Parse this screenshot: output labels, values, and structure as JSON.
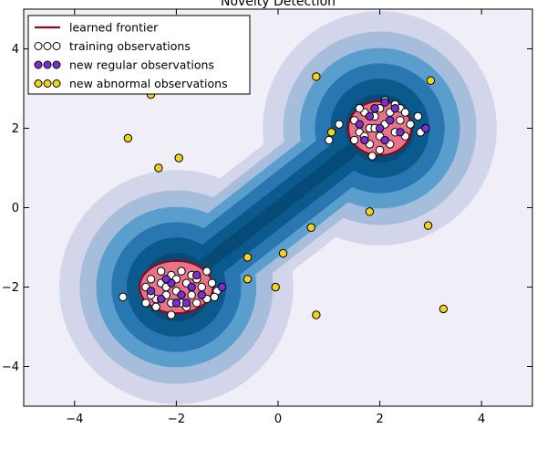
{
  "chart_data": {
    "type": "scatter",
    "title": "Novelty Detection",
    "xlabel": "",
    "ylabel": "",
    "xlim": [
      -5,
      5
    ],
    "ylim": [
      -5,
      5
    ],
    "x_ticks": [
      -4,
      -2,
      0,
      2,
      4
    ],
    "y_ticks": [
      -4,
      -2,
      0,
      2,
      4
    ],
    "grid": false,
    "legend_position": "top-left",
    "colors": {
      "frontier": "#8b0a1a",
      "frontier_fill": "#e8748c",
      "training": "#ffffff",
      "regular": "#7b2fd0",
      "abnormal": "#f2d21b",
      "contour_levels": [
        "#f0eef6",
        "#d3d6ea",
        "#a6bddb",
        "#5a9ecd",
        "#2a76b1",
        "#0b5a8e",
        "#064a78"
      ]
    },
    "legend": [
      {
        "label": "learned frontier",
        "kind": "line",
        "color": "#8b0a1a"
      },
      {
        "label": "training observations",
        "kind": "markers",
        "color": "#ffffff"
      },
      {
        "label": "new regular observations",
        "kind": "markers",
        "color": "#7b2fd0"
      },
      {
        "label": "new abnormal observations",
        "kind": "markers",
        "color": "#f2d21b"
      }
    ],
    "series": [
      {
        "name": "training observations",
        "points": [
          [
            -2.6,
            -2.0
          ],
          [
            -2.5,
            -1.8
          ],
          [
            -2.4,
            -2.3
          ],
          [
            -2.3,
            -1.9
          ],
          [
            -2.2,
            -2.2
          ],
          [
            -2.1,
            -1.7
          ],
          [
            -2.0,
            -2.1
          ],
          [
            -1.9,
            -2.4
          ],
          [
            -1.8,
            -1.9
          ],
          [
            -1.7,
            -2.2
          ],
          [
            -1.6,
            -1.8
          ],
          [
            -1.5,
            -2.0
          ],
          [
            -1.4,
            -2.3
          ],
          [
            -1.3,
            -1.9
          ],
          [
            -1.2,
            -2.1
          ],
          [
            -2.4,
            -2.5
          ],
          [
            -2.1,
            -2.4
          ],
          [
            -1.8,
            -2.5
          ],
          [
            -2.5,
            -2.2
          ],
          [
            -2.3,
            -1.6
          ],
          [
            -1.9,
            -1.6
          ],
          [
            -1.6,
            -2.4
          ],
          [
            -2.0,
            -1.8
          ],
          [
            -2.2,
            -2.0
          ],
          [
            -1.7,
            -1.7
          ],
          [
            -1.4,
            -1.6
          ],
          [
            -2.6,
            -2.4
          ],
          [
            -2.1,
            -2.7
          ],
          [
            -3.05,
            -2.25
          ],
          [
            -1.25,
            -2.25
          ],
          [
            1.5,
            2.2
          ],
          [
            1.6,
            1.9
          ],
          [
            1.7,
            2.4
          ],
          [
            1.8,
            2.0
          ],
          [
            1.9,
            2.3
          ],
          [
            2.0,
            1.8
          ],
          [
            2.1,
            2.1
          ],
          [
            2.2,
            2.4
          ],
          [
            2.3,
            1.9
          ],
          [
            2.4,
            2.2
          ],
          [
            2.5,
            1.8
          ],
          [
            1.6,
            2.5
          ],
          [
            2.0,
            2.5
          ],
          [
            2.3,
            2.6
          ],
          [
            1.8,
            1.6
          ],
          [
            2.2,
            1.6
          ],
          [
            2.6,
            2.1
          ],
          [
            1.5,
            1.7
          ],
          [
            1.9,
            2.0
          ],
          [
            2.4,
            2.5
          ],
          [
            1.7,
            1.8
          ],
          [
            2.1,
            2.7
          ],
          [
            2.5,
            2.4
          ],
          [
            2.8,
            1.9
          ],
          [
            1.2,
            2.1
          ],
          [
            1.0,
            1.7
          ],
          [
            1.85,
            1.3
          ],
          [
            2.0,
            1.45
          ],
          [
            2.75,
            2.3
          ]
        ]
      },
      {
        "name": "new regular observations",
        "points": [
          [
            -2.5,
            -2.1
          ],
          [
            -2.3,
            -2.3
          ],
          [
            -2.1,
            -1.9
          ],
          [
            -1.9,
            -2.2
          ],
          [
            -1.7,
            -2.0
          ],
          [
            -1.5,
            -2.2
          ],
          [
            -2.2,
            -1.8
          ],
          [
            -1.8,
            -2.4
          ],
          [
            -2.0,
            -2.4
          ],
          [
            -1.6,
            -1.7
          ],
          [
            -1.1,
            -2.0
          ],
          [
            1.6,
            2.1
          ],
          [
            1.8,
            2.3
          ],
          [
            2.0,
            2.0
          ],
          [
            2.2,
            2.2
          ],
          [
            2.4,
            1.9
          ],
          [
            1.7,
            1.7
          ],
          [
            2.1,
            1.7
          ],
          [
            2.3,
            2.5
          ],
          [
            2.1,
            2.65
          ],
          [
            2.9,
            2.0
          ],
          [
            1.9,
            2.5
          ]
        ]
      },
      {
        "name": "new abnormal observations",
        "points": [
          [
            -2.5,
            2.85
          ],
          [
            -2.95,
            1.75
          ],
          [
            -2.35,
            1.0
          ],
          [
            -1.95,
            1.25
          ],
          [
            -0.6,
            -1.25
          ],
          [
            0.1,
            -1.15
          ],
          [
            -0.6,
            -1.8
          ],
          [
            -0.05,
            -2.0
          ],
          [
            0.75,
            -2.7
          ],
          [
            0.65,
            -0.5
          ],
          [
            0.75,
            3.3
          ],
          [
            1.05,
            1.9
          ],
          [
            1.8,
            -0.1
          ],
          [
            2.95,
            -0.45
          ],
          [
            3.0,
            3.2
          ],
          [
            3.25,
            -2.55
          ]
        ]
      }
    ]
  }
}
